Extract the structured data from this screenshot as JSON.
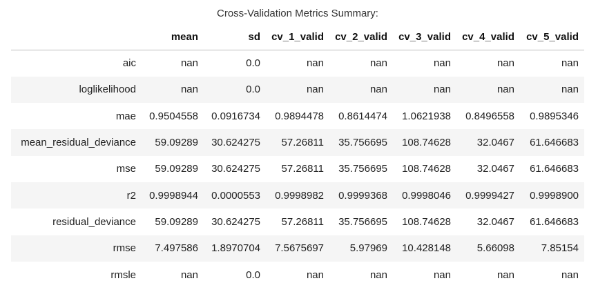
{
  "caption": "Cross-Validation Metrics Summary:",
  "columns": [
    "",
    "mean",
    "sd",
    "cv_1_valid",
    "cv_2_valid",
    "cv_3_valid",
    "cv_4_valid",
    "cv_5_valid"
  ],
  "rows": [
    {
      "label": "aic",
      "values": [
        "nan",
        "0.0",
        "nan",
        "nan",
        "nan",
        "nan",
        "nan"
      ]
    },
    {
      "label": "loglikelihood",
      "values": [
        "nan",
        "0.0",
        "nan",
        "nan",
        "nan",
        "nan",
        "nan"
      ]
    },
    {
      "label": "mae",
      "values": [
        "0.9504558",
        "0.0916734",
        "0.9894478",
        "0.8614474",
        "1.0621938",
        "0.8496558",
        "0.9895346"
      ]
    },
    {
      "label": "mean_residual_deviance",
      "values": [
        "59.09289",
        "30.624275",
        "57.26811",
        "35.756695",
        "108.74628",
        "32.0467",
        "61.646683"
      ]
    },
    {
      "label": "mse",
      "values": [
        "59.09289",
        "30.624275",
        "57.26811",
        "35.756695",
        "108.74628",
        "32.0467",
        "61.646683"
      ]
    },
    {
      "label": "r2",
      "values": [
        "0.9998944",
        "0.0000553",
        "0.9998982",
        "0.9999368",
        "0.9998046",
        "0.9999427",
        "0.9998900"
      ]
    },
    {
      "label": "residual_deviance",
      "values": [
        "59.09289",
        "30.624275",
        "57.26811",
        "35.756695",
        "108.74628",
        "32.0467",
        "61.646683"
      ]
    },
    {
      "label": "rmse",
      "values": [
        "7.497586",
        "1.8970704",
        "7.5675697",
        "5.97969",
        "10.428148",
        "5.66098",
        "7.85154"
      ]
    },
    {
      "label": "rmsle",
      "values": [
        "nan",
        "0.0",
        "nan",
        "nan",
        "nan",
        "nan",
        "nan"
      ]
    }
  ]
}
